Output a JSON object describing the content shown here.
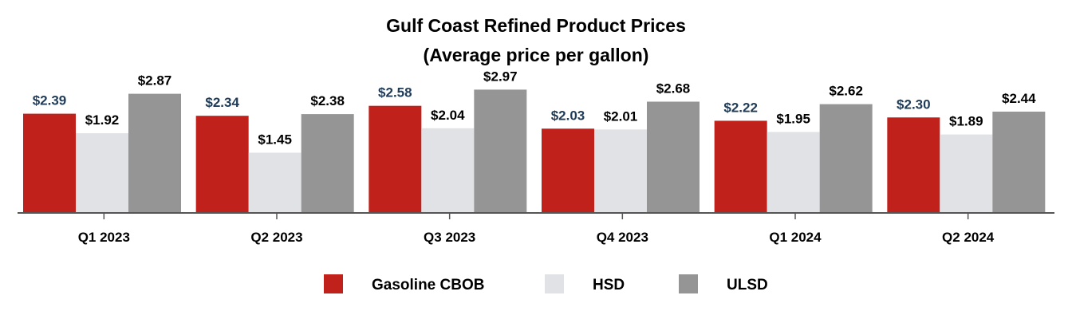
{
  "chart_data": {
    "type": "bar",
    "title": "Gulf Coast Refined Product Prices",
    "subtitle": "(Average price per gallon)",
    "categories": [
      "Q1 2023",
      "Q2 2023",
      "Q3 2023",
      "Q4 2023",
      "Q1 2024",
      "Q2 2024"
    ],
    "series": [
      {
        "name": "Gasoline CBOB",
        "color": "#c0211a",
        "label_color": "#1f3b57",
        "values": [
          2.39,
          2.34,
          2.58,
          2.03,
          2.22,
          2.3
        ],
        "labels": [
          "$2.39",
          "$2.34",
          "$2.58",
          "$2.03",
          "$2.22",
          "$2.30"
        ]
      },
      {
        "name": "HSD",
        "color": "#e1e2e6",
        "label_color": "#000000",
        "values": [
          1.92,
          1.45,
          2.04,
          2.01,
          1.95,
          1.89
        ],
        "labels": [
          "$1.92",
          "$1.45",
          "$2.04",
          "$2.01",
          "$1.95",
          "$1.89"
        ]
      },
      {
        "name": "ULSD",
        "color": "#959595",
        "label_color": "#000000",
        "values": [
          2.87,
          2.38,
          2.97,
          2.68,
          2.62,
          2.44
        ],
        "labels": [
          "$2.87",
          "$2.38",
          "$2.97",
          "$2.68",
          "$2.62",
          "$2.44"
        ]
      }
    ],
    "xlabel": "",
    "ylabel": "",
    "ylim": [
      0,
      3.4
    ],
    "grid": false,
    "legend": "bottom-center"
  }
}
